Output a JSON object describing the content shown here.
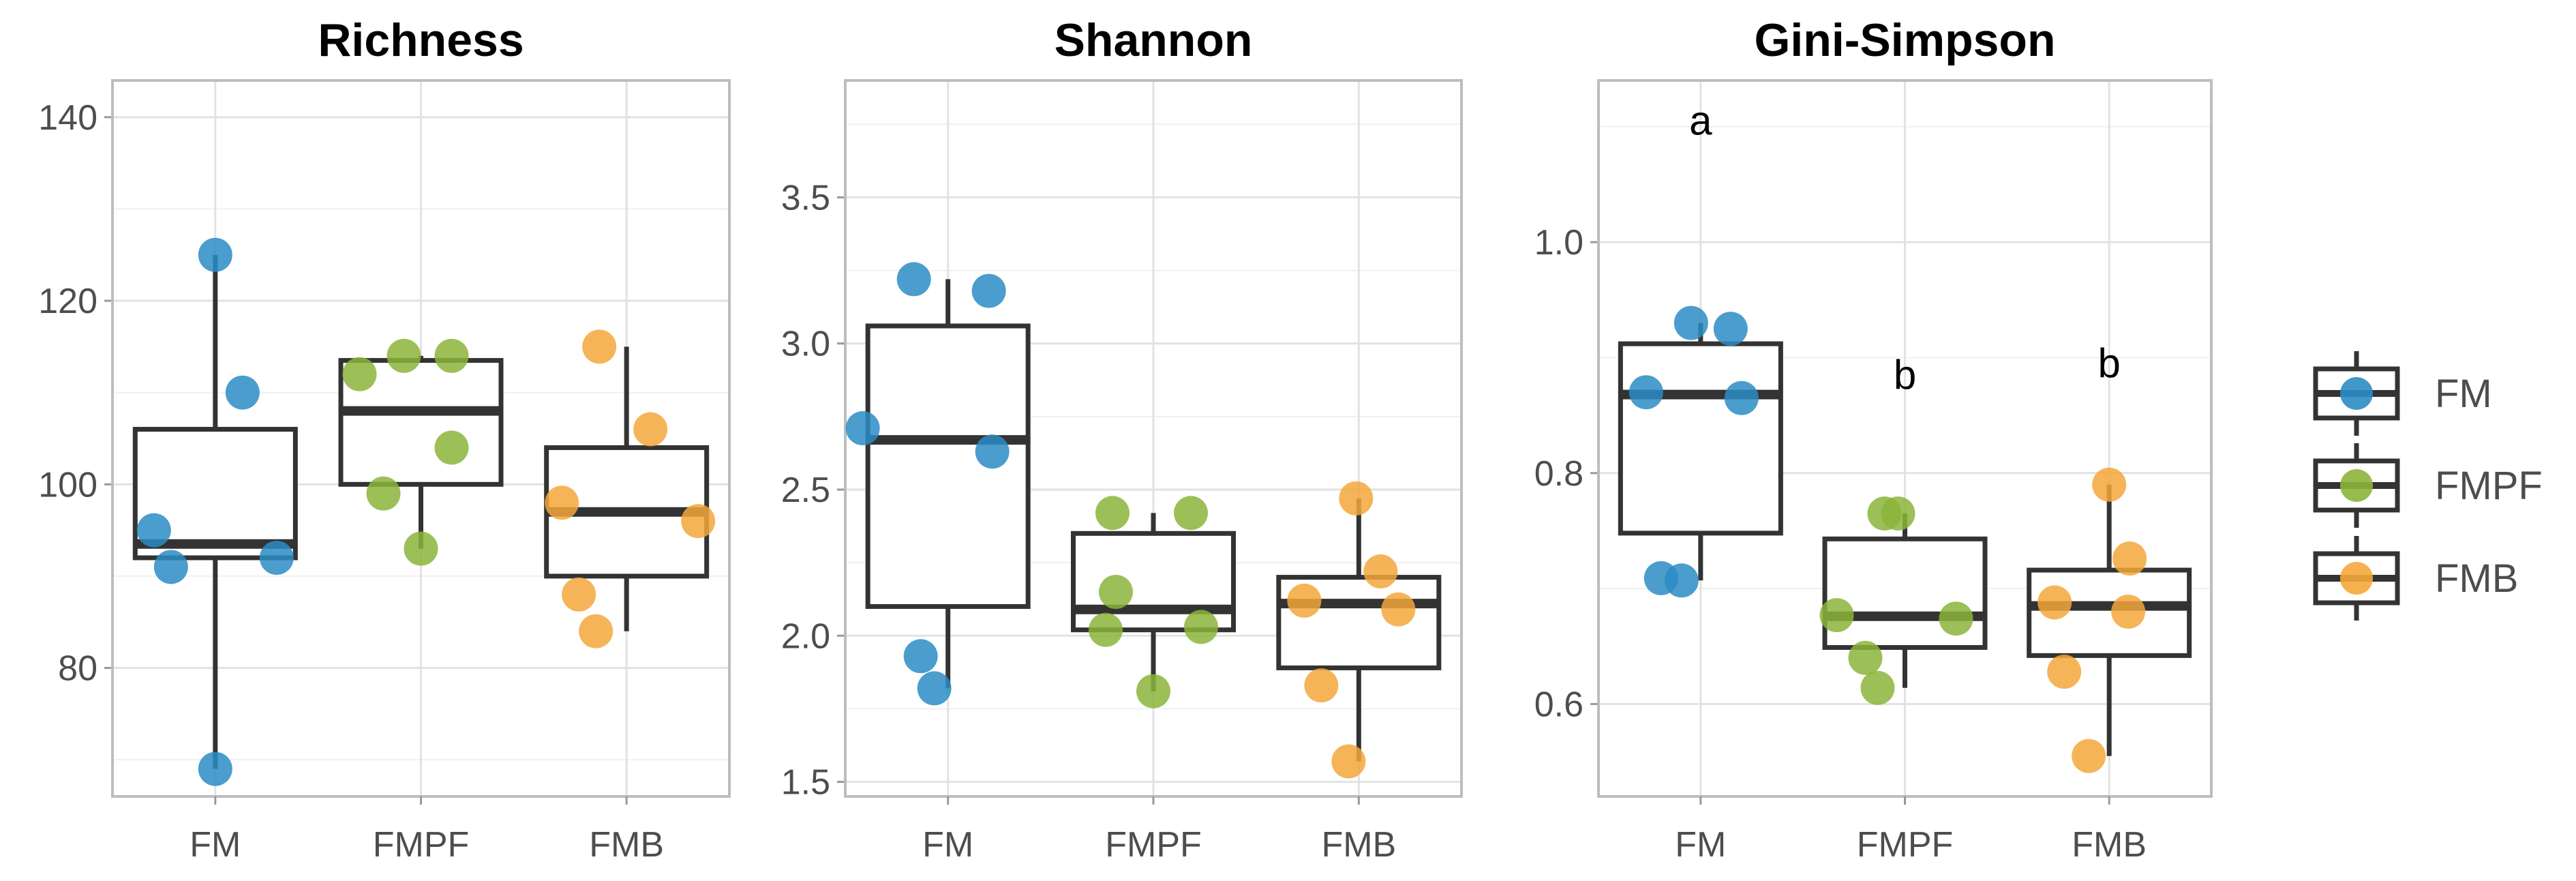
{
  "chart_data": [
    {
      "type": "box",
      "title": "Richness",
      "categories": [
        "FM",
        "FMPF",
        "FMB"
      ],
      "ylim": [
        66,
        144
      ],
      "yticks": [
        80,
        100,
        120,
        140
      ],
      "colors": [
        "#2b8cc4",
        "#8cb43a",
        "#f5a73b"
      ],
      "boxes": [
        {
          "category": "FM",
          "q1": 92,
          "median": 93.5,
          "q3": 106,
          "whisker_low": 69,
          "whisker_high": 125
        },
        {
          "category": "FMPF",
          "q1": 100,
          "median": 108,
          "q3": 113.5,
          "whisker_low": 93,
          "whisker_high": 114
        },
        {
          "category": "FMB",
          "q1": 90,
          "median": 97,
          "q3": 104,
          "whisker_low": 84,
          "whisker_high": 115
        }
      ],
      "points": [
        [
          125,
          110,
          95,
          92,
          91,
          69
        ],
        [
          112,
          114,
          114,
          104,
          99,
          93
        ],
        [
          115,
          106,
          98,
          96,
          88,
          84
        ]
      ],
      "annotations": []
    },
    {
      "type": "box",
      "title": "Shannon",
      "categories": [
        "FM",
        "FMPF",
        "FMB"
      ],
      "ylim": [
        1.45,
        3.9
      ],
      "yticks": [
        "1.5",
        "2.0",
        "2.5",
        "3.0",
        "3.5"
      ],
      "colors": [
        "#2b8cc4",
        "#8cb43a",
        "#f5a73b"
      ],
      "boxes": [
        {
          "category": "FM",
          "q1": 2.1,
          "median": 2.67,
          "q3": 3.06,
          "whisker_low": 1.82,
          "whisker_high": 3.22
        },
        {
          "category": "FMPF",
          "q1": 2.02,
          "median": 2.09,
          "q3": 2.35,
          "whisker_low": 1.81,
          "whisker_high": 2.42
        },
        {
          "category": "FMB",
          "q1": 1.89,
          "median": 2.11,
          "q3": 2.2,
          "whisker_low": 1.57,
          "whisker_high": 2.47
        }
      ],
      "points": [
        [
          3.22,
          3.18,
          2.71,
          2.63,
          1.93,
          1.82
        ],
        [
          2.42,
          2.42,
          2.15,
          2.03,
          2.02,
          1.81
        ],
        [
          2.47,
          2.22,
          2.12,
          2.09,
          1.83,
          1.57
        ]
      ],
      "annotations": []
    },
    {
      "type": "box",
      "title": "Gini-Simpson",
      "categories": [
        "FM",
        "FMPF",
        "FMB"
      ],
      "ylim": [
        0.52,
        1.14
      ],
      "yticks": [
        "0.6",
        "0.8",
        "1.0"
      ],
      "colors": [
        "#2b8cc4",
        "#8cb43a",
        "#f5a73b"
      ],
      "boxes": [
        {
          "category": "FM",
          "q1": 0.748,
          "median": 0.868,
          "q3": 0.912,
          "whisker_low": 0.707,
          "whisker_high": 0.93
        },
        {
          "category": "FMPF",
          "q1": 0.649,
          "median": 0.676,
          "q3": 0.743,
          "whisker_low": 0.614,
          "whisker_high": 0.765
        },
        {
          "category": "FMB",
          "q1": 0.642,
          "median": 0.685,
          "q3": 0.716,
          "whisker_low": 0.555,
          "whisker_high": 0.79
        }
      ],
      "points": [
        [
          0.93,
          0.925,
          0.87,
          0.865,
          0.709,
          0.707
        ],
        [
          0.765,
          0.765,
          0.677,
          0.674,
          0.64,
          0.614
        ],
        [
          0.79,
          0.726,
          0.688,
          0.68,
          0.628,
          0.555
        ]
      ],
      "annotations": [
        {
          "category": "FM",
          "y": 1.105,
          "text": "a"
        },
        {
          "category": "FMPF",
          "y": 0.885,
          "text": "b"
        },
        {
          "category": "FMB",
          "y": 0.895,
          "text": "b"
        }
      ]
    }
  ],
  "legend": {
    "entries": [
      {
        "label": "FM",
        "color": "#2b8cc4"
      },
      {
        "label": "FMPF",
        "color": "#8cb43a"
      },
      {
        "label": "FMB",
        "color": "#f5a73b"
      }
    ]
  }
}
